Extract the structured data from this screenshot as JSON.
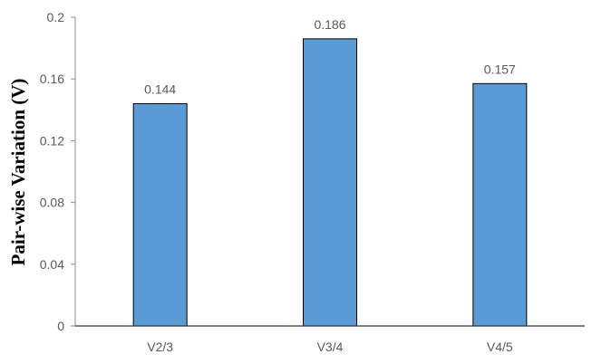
{
  "chart_data": {
    "type": "bar",
    "title": "",
    "xlabel": "",
    "ylabel": "Pair-wise Variation (V)",
    "categories": [
      "V2/3",
      "V3/4",
      "V4/5"
    ],
    "values": [
      0.144,
      0.186,
      0.157
    ],
    "data_labels": [
      "0.144",
      "0.186",
      "0.157"
    ],
    "ylim": [
      0,
      0.2
    ],
    "yticks": [
      "0",
      "0.04",
      "0.08",
      "0.12",
      "0.16",
      "0.2"
    ],
    "grid": false,
    "legend": "none",
    "bar_color": "#5B9BD5",
    "bar_edge_color": "#000000"
  }
}
